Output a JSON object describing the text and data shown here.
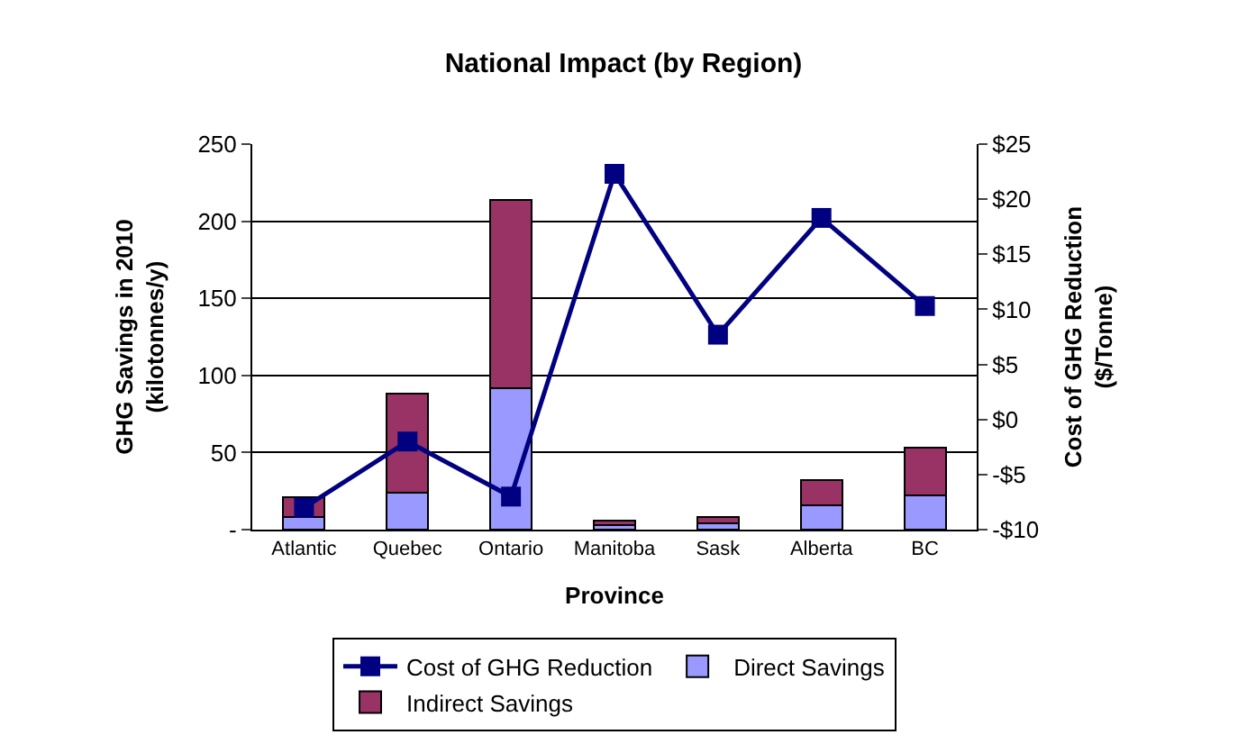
{
  "chart_data": {
    "type": "bar",
    "title": "National Impact (by Region)",
    "xlabel": "Province",
    "ylabel": "GHG Savings in 2010\n(kilotonnes/y)",
    "y2label": "Cost of GHG Reduction\n($/Tonne)",
    "categories": [
      "Atlantic",
      "Quebec",
      "Ontario",
      "Manitoba",
      "Sask",
      "Alberta",
      "BC"
    ],
    "stacked": true,
    "series": [
      {
        "name": "Direct Savings",
        "color": "#9999ff",
        "values": [
          8,
          24,
          92,
          3,
          4,
          16,
          22
        ]
      },
      {
        "name": "Indirect Savings",
        "color": "#993366",
        "values": [
          13,
          64,
          122,
          3,
          4,
          16,
          31
        ]
      },
      {
        "name": "Cost of GHG Reduction",
        "type": "line",
        "axis": "y2",
        "color": "#000080",
        "marker": "square",
        "values": [
          -8,
          -2,
          -7,
          22.3,
          7.7,
          18.3,
          10.3
        ]
      }
    ],
    "ylim": [
      0,
      250
    ],
    "yticks": [
      {
        "value": 0,
        "label": "-"
      },
      50,
      100,
      150,
      200,
      250
    ],
    "y2lim": [
      -10,
      25
    ],
    "y2ticks": [
      {
        "value": -10,
        "label": "-$10"
      },
      {
        "value": -5,
        "label": "-$5"
      },
      {
        "value": 0,
        "label": "$0"
      },
      {
        "value": 5,
        "label": "$5"
      },
      {
        "value": 10,
        "label": "$10"
      },
      {
        "value": 15,
        "label": "$15"
      },
      {
        "value": 20,
        "label": "$20"
      },
      {
        "value": 25,
        "label": "$25"
      }
    ],
    "grid": "y",
    "legend": "bottom",
    "line_style": "solid"
  }
}
